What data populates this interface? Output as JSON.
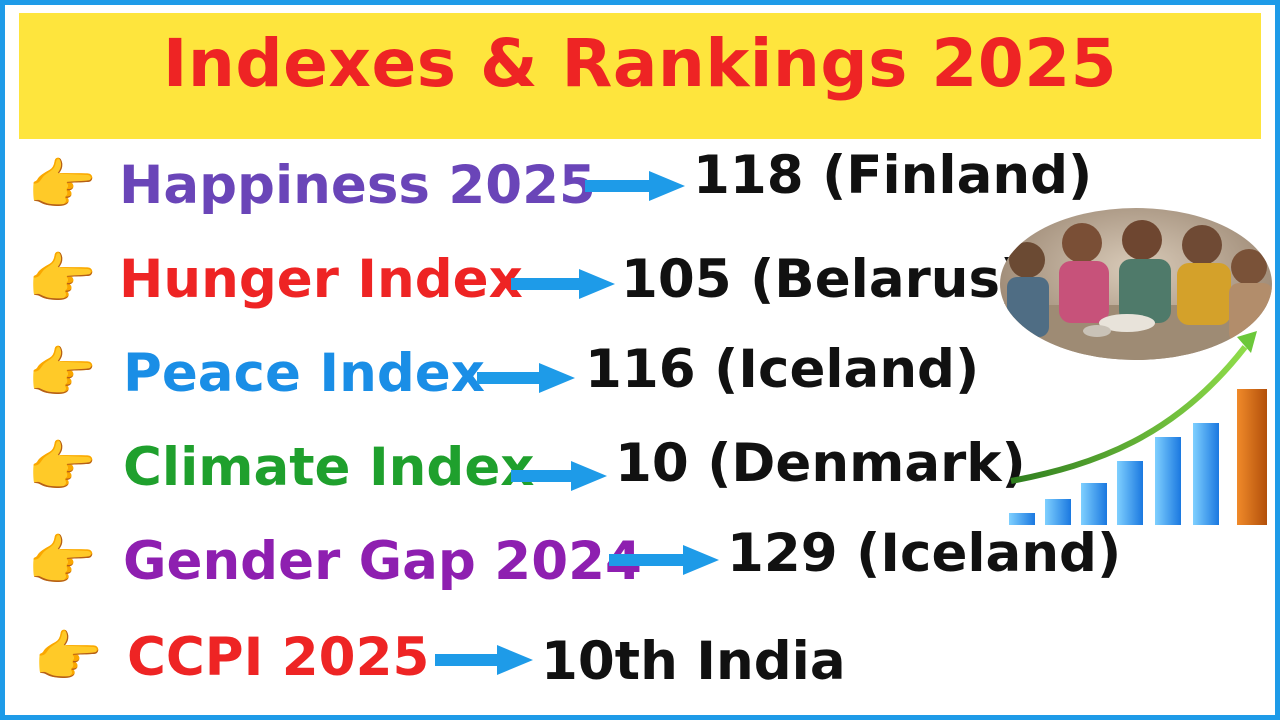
{
  "title": "Indexes & Rankings 2025",
  "icons": {
    "pointer": "backhand-index-pointing-right"
  },
  "pointer_glyph": "👉",
  "rows": [
    {
      "label": "Happiness 2025",
      "value": "118 (Finland)",
      "color": "#6a45b8"
    },
    {
      "label": "Hunger Index",
      "value": "105 (Belarus)",
      "color": "#ee2424"
    },
    {
      "label": "Peace Index",
      "value": "116 (Iceland)",
      "color": "#1a8ee6"
    },
    {
      "label": "Climate Index",
      "value": "10 (Denmark)",
      "color": "#1fa02d"
    },
    {
      "label": "Gender Gap 2024",
      "value": "129 (Iceland)",
      "color": "#8e1fb0"
    },
    {
      "label": "CCPI 2025",
      "value": "10th India",
      "color": "#ee2424"
    }
  ],
  "colors": {
    "frame": "#1e9be8",
    "banner": "#fee53d",
    "title": "#ee2424",
    "arrow": "#1e9be8"
  },
  "images": [
    "photo-of-children-eating",
    "growth-bar-chart-with-arrow"
  ]
}
